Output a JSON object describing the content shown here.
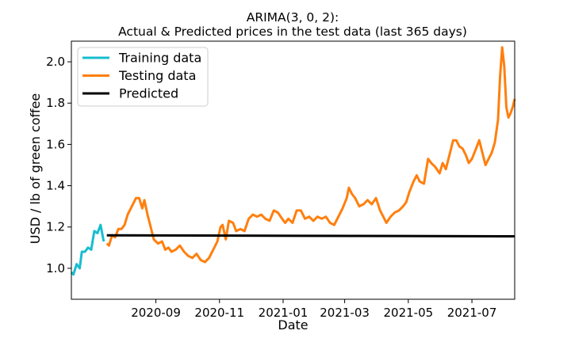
{
  "chart_data": {
    "type": "line",
    "title_lines": [
      "ARIMA(3, 0, 2):",
      "Actual & Predicted prices in the test data (last 365 days)"
    ],
    "xlabel": "Date",
    "ylabel": "USD / lb of green coffee",
    "x_ticks": [
      "2020-09",
      "2020-11",
      "2021-01",
      "2021-03",
      "2021-05",
      "2021-07"
    ],
    "x_tick_dates": [
      "2020-09-01",
      "2020-11-01",
      "2021-01-01",
      "2021-03-01",
      "2021-05-01",
      "2021-07-01"
    ],
    "x_range": [
      "2020-06-12",
      "2021-08-11"
    ],
    "y_ticks": [
      1.0,
      1.2,
      1.4,
      1.6,
      1.8,
      2.0
    ],
    "ylim": [
      0.85,
      2.1
    ],
    "legend_position": "upper-left",
    "series": [
      {
        "name": "Training data",
        "color": "#17becf",
        "points": [
          [
            "2020-06-12",
            0.98
          ],
          [
            "2020-06-14",
            0.97
          ],
          [
            "2020-06-17",
            1.02
          ],
          [
            "2020-06-20",
            1.0
          ],
          [
            "2020-06-22",
            1.08
          ],
          [
            "2020-06-25",
            1.08
          ],
          [
            "2020-06-28",
            1.1
          ],
          [
            "2020-07-01",
            1.09
          ],
          [
            "2020-07-04",
            1.18
          ],
          [
            "2020-07-07",
            1.17
          ],
          [
            "2020-07-10",
            1.21
          ],
          [
            "2020-07-13",
            1.13
          ]
        ]
      },
      {
        "name": "Testing data",
        "color": "#ff7f0e",
        "points": [
          [
            "2020-07-16",
            1.12
          ],
          [
            "2020-07-18",
            1.11
          ],
          [
            "2020-07-21",
            1.16
          ],
          [
            "2020-07-24",
            1.15
          ],
          [
            "2020-07-27",
            1.19
          ],
          [
            "2020-07-30",
            1.19
          ],
          [
            "2020-08-02",
            1.21
          ],
          [
            "2020-08-05",
            1.26
          ],
          [
            "2020-08-09",
            1.3
          ],
          [
            "2020-08-13",
            1.34
          ],
          [
            "2020-08-16",
            1.34
          ],
          [
            "2020-08-19",
            1.29
          ],
          [
            "2020-08-21",
            1.33
          ],
          [
            "2020-08-24",
            1.26
          ],
          [
            "2020-08-27",
            1.2
          ],
          [
            "2020-08-30",
            1.14
          ],
          [
            "2020-09-03",
            1.12
          ],
          [
            "2020-09-07",
            1.13
          ],
          [
            "2020-09-10",
            1.09
          ],
          [
            "2020-09-13",
            1.1
          ],
          [
            "2020-09-16",
            1.08
          ],
          [
            "2020-09-20",
            1.09
          ],
          [
            "2020-09-24",
            1.11
          ],
          [
            "2020-09-28",
            1.08
          ],
          [
            "2020-10-02",
            1.06
          ],
          [
            "2020-10-06",
            1.05
          ],
          [
            "2020-10-10",
            1.07
          ],
          [
            "2020-10-14",
            1.04
          ],
          [
            "2020-10-18",
            1.03
          ],
          [
            "2020-10-22",
            1.05
          ],
          [
            "2020-10-26",
            1.09
          ],
          [
            "2020-10-30",
            1.13
          ],
          [
            "2020-11-02",
            1.2
          ],
          [
            "2020-11-04",
            1.21
          ],
          [
            "2020-11-07",
            1.14
          ],
          [
            "2020-11-10",
            1.23
          ],
          [
            "2020-11-14",
            1.22
          ],
          [
            "2020-11-17",
            1.18
          ],
          [
            "2020-11-21",
            1.19
          ],
          [
            "2020-11-25",
            1.18
          ],
          [
            "2020-11-29",
            1.24
          ],
          [
            "2020-12-03",
            1.26
          ],
          [
            "2020-12-07",
            1.25
          ],
          [
            "2020-12-11",
            1.26
          ],
          [
            "2020-12-15",
            1.24
          ],
          [
            "2020-12-19",
            1.23
          ],
          [
            "2020-12-23",
            1.28
          ],
          [
            "2020-12-27",
            1.27
          ],
          [
            "2020-12-31",
            1.24
          ],
          [
            "2021-01-03",
            1.22
          ],
          [
            "2021-01-06",
            1.24
          ],
          [
            "2021-01-10",
            1.22
          ],
          [
            "2021-01-14",
            1.28
          ],
          [
            "2021-01-18",
            1.28
          ],
          [
            "2021-01-22",
            1.24
          ],
          [
            "2021-01-26",
            1.25
          ],
          [
            "2021-01-30",
            1.23
          ],
          [
            "2021-02-03",
            1.25
          ],
          [
            "2021-02-07",
            1.24
          ],
          [
            "2021-02-11",
            1.25
          ],
          [
            "2021-02-15",
            1.22
          ],
          [
            "2021-02-19",
            1.21
          ],
          [
            "2021-02-23",
            1.25
          ],
          [
            "2021-02-27",
            1.29
          ],
          [
            "2021-03-03",
            1.34
          ],
          [
            "2021-03-05",
            1.39
          ],
          [
            "2021-03-08",
            1.36
          ],
          [
            "2021-03-11",
            1.34
          ],
          [
            "2021-03-15",
            1.3
          ],
          [
            "2021-03-19",
            1.31
          ],
          [
            "2021-03-23",
            1.33
          ],
          [
            "2021-03-27",
            1.31
          ],
          [
            "2021-03-31",
            1.34
          ],
          [
            "2021-04-04",
            1.28
          ],
          [
            "2021-04-07",
            1.25
          ],
          [
            "2021-04-10",
            1.22
          ],
          [
            "2021-04-14",
            1.25
          ],
          [
            "2021-04-18",
            1.27
          ],
          [
            "2021-04-22",
            1.28
          ],
          [
            "2021-04-26",
            1.3
          ],
          [
            "2021-04-29",
            1.32
          ],
          [
            "2021-05-02",
            1.37
          ],
          [
            "2021-05-06",
            1.42
          ],
          [
            "2021-05-09",
            1.45
          ],
          [
            "2021-05-12",
            1.42
          ],
          [
            "2021-05-16",
            1.41
          ],
          [
            "2021-05-20",
            1.53
          ],
          [
            "2021-05-23",
            1.51
          ],
          [
            "2021-05-27",
            1.49
          ],
          [
            "2021-05-31",
            1.46
          ],
          [
            "2021-06-03",
            1.51
          ],
          [
            "2021-06-06",
            1.48
          ],
          [
            "2021-06-10",
            1.56
          ],
          [
            "2021-06-13",
            1.62
          ],
          [
            "2021-06-16",
            1.62
          ],
          [
            "2021-06-19",
            1.59
          ],
          [
            "2021-06-22",
            1.58
          ],
          [
            "2021-06-25",
            1.55
          ],
          [
            "2021-06-28",
            1.51
          ],
          [
            "2021-07-01",
            1.53
          ],
          [
            "2021-07-05",
            1.58
          ],
          [
            "2021-07-08",
            1.62
          ],
          [
            "2021-07-11",
            1.56
          ],
          [
            "2021-07-14",
            1.5
          ],
          [
            "2021-07-17",
            1.53
          ],
          [
            "2021-07-20",
            1.56
          ],
          [
            "2021-07-23",
            1.61
          ],
          [
            "2021-07-26",
            1.72
          ],
          [
            "2021-07-28",
            1.93
          ],
          [
            "2021-07-30",
            2.07
          ],
          [
            "2021-08-01",
            1.98
          ],
          [
            "2021-08-03",
            1.78
          ],
          [
            "2021-08-05",
            1.73
          ],
          [
            "2021-08-07",
            1.75
          ],
          [
            "2021-08-09",
            1.78
          ],
          [
            "2021-08-11",
            1.82
          ]
        ]
      },
      {
        "name": "Predicted",
        "color": "#000000",
        "points": [
          [
            "2020-07-16",
            1.16
          ],
          [
            "2021-08-11",
            1.155
          ]
        ]
      }
    ]
  }
}
